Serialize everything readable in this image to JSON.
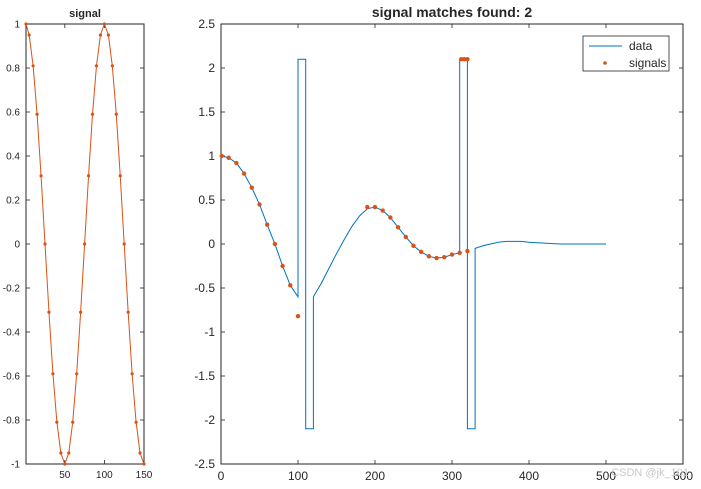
{
  "figure": {
    "watermark": "CSDN @jk_101",
    "colors": {
      "data": "#0072BD",
      "signals": "#D95319",
      "axes": "#262626",
      "background": "#ffffff"
    }
  },
  "chart_data": [
    {
      "type": "line",
      "title": "signal",
      "xlabel": "",
      "ylabel": "",
      "xlim": [
        1,
        150
      ],
      "ylim": [
        -1,
        1
      ],
      "x_ticks": [
        50,
        100,
        150
      ],
      "y_ticks": [
        -1,
        -0.8,
        -0.6,
        -0.4,
        -0.2,
        0,
        0.2,
        0.4,
        0.6,
        0.8,
        1
      ],
      "y_tick_labels": [
        "-1",
        "-0.8",
        "-0.6",
        "-0.4",
        "-0.2",
        "0",
        "0.2",
        "0.4",
        "0.6",
        "0.8",
        "1"
      ],
      "grid": false,
      "series": [
        {
          "style": "line+dots",
          "color": "#D95319",
          "x": [
            1,
            5,
            10,
            15,
            20,
            25,
            30,
            35,
            40,
            45,
            50,
            55,
            60,
            65,
            70,
            75,
            80,
            85,
            90,
            95,
            100,
            105,
            110,
            115,
            120,
            125,
            130,
            135,
            140,
            145,
            150
          ],
          "y": [
            1.0,
            0.95,
            0.81,
            0.59,
            0.31,
            0.0,
            -0.31,
            -0.59,
            -0.81,
            -0.95,
            -1.0,
            -0.95,
            -0.81,
            -0.59,
            -0.31,
            0.0,
            0.31,
            0.59,
            0.81,
            0.95,
            1.0,
            0.95,
            0.81,
            0.59,
            0.31,
            0.0,
            -0.31,
            -0.59,
            -0.81,
            -0.95,
            -1.0
          ]
        }
      ]
    },
    {
      "type": "line",
      "title": "signal matches found: 2",
      "xlabel": "",
      "ylabel": "",
      "xlim": [
        0,
        600
      ],
      "ylim": [
        -2.5,
        2.5
      ],
      "x_ticks": [
        0,
        100,
        200,
        300,
        400,
        500,
        600
      ],
      "y_ticks": [
        -2.5,
        -2,
        -1.5,
        -1,
        -0.5,
        0,
        0.5,
        1,
        1.5,
        2,
        2.5
      ],
      "y_tick_labels": [
        "-2.5",
        "-2",
        "-1.5",
        "-1",
        "-0.5",
        "0",
        "0.5",
        "1",
        "1.5",
        "2",
        "2.5"
      ],
      "grid": false,
      "legend": {
        "placement": "top-right",
        "entries": [
          "data",
          "signals"
        ]
      },
      "series": [
        {
          "name": "data",
          "style": "line",
          "color": "#0072BD",
          "x": [
            1,
            10,
            20,
            30,
            40,
            50,
            60,
            70,
            80,
            90,
            100,
            100,
            110,
            110,
            120,
            120,
            130,
            140,
            150,
            160,
            170,
            180,
            190,
            200,
            210,
            220,
            230,
            240,
            250,
            260,
            270,
            280,
            290,
            300,
            310,
            310,
            320,
            320,
            330,
            330,
            340,
            350,
            360,
            370,
            380,
            390,
            400,
            420,
            440,
            460,
            480,
            500
          ],
          "y": [
            1.0,
            0.98,
            0.92,
            0.8,
            0.64,
            0.45,
            0.22,
            0.0,
            -0.25,
            -0.47,
            -0.6,
            2.1,
            2.1,
            -2.1,
            -2.1,
            -0.6,
            -0.45,
            -0.28,
            -0.11,
            0.05,
            0.2,
            0.32,
            0.4,
            0.42,
            0.38,
            0.3,
            0.19,
            0.08,
            -0.02,
            -0.09,
            -0.14,
            -0.16,
            -0.15,
            -0.12,
            -0.1,
            2.1,
            2.1,
            -2.1,
            -2.1,
            -0.05,
            -0.02,
            0.0,
            0.02,
            0.03,
            0.03,
            0.03,
            0.02,
            0.01,
            0.0,
            0.0,
            0.0,
            0.0
          ]
        },
        {
          "name": "signals",
          "style": "dots",
          "color": "#D95319",
          "x": [
            1,
            10,
            20,
            30,
            40,
            50,
            60,
            70,
            80,
            90,
            100,
            190,
            200,
            210,
            220,
            230,
            240,
            250,
            260,
            270,
            280,
            290,
            300,
            310,
            312,
            316,
            320,
            320
          ],
          "y": [
            1.0,
            0.98,
            0.92,
            0.8,
            0.64,
            0.45,
            0.22,
            0.0,
            -0.25,
            -0.47,
            -0.82,
            0.42,
            0.42,
            0.38,
            0.3,
            0.19,
            0.08,
            -0.02,
            -0.09,
            -0.14,
            -0.16,
            -0.15,
            -0.12,
            -0.1,
            2.1,
            2.1,
            2.1,
            -0.08
          ]
        }
      ]
    }
  ]
}
